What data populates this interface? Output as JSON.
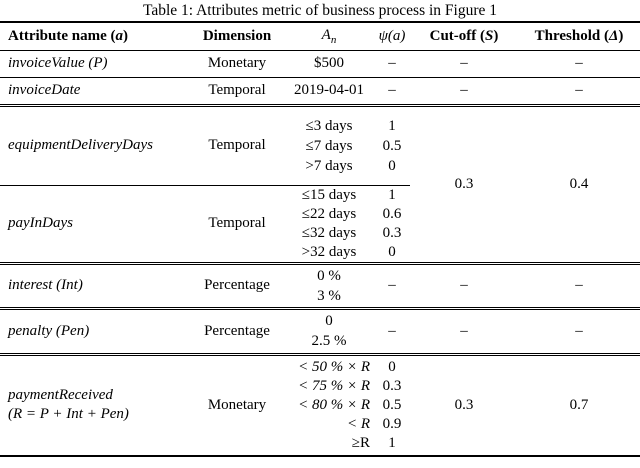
{
  "caption": "Table 1: Attributes metric of business process in Figure 1",
  "table": {
    "headers": {
      "attribute": {
        "pre": "Attribute name (",
        "var": "a",
        "post": ")"
      },
      "dimension": "Dimension",
      "an": {
        "var": "A",
        "sub": "n"
      },
      "psi": "ψ(a)",
      "cutoff": {
        "pre": "Cut-off (",
        "var": "S",
        "post": ")"
      },
      "threshold": {
        "pre": "Threshold (",
        "var": "Δ",
        "post": ")"
      }
    },
    "rows": [
      {
        "name": "invoiceValue (P)",
        "dimension": "Monetary",
        "an": [
          "$500"
        ],
        "psi": [
          "–"
        ],
        "cutoff": "–",
        "threshold": "–"
      },
      {
        "name": "invoiceDate",
        "dimension": "Temporal",
        "an": [
          "2019-04-01"
        ],
        "psi": [
          "–"
        ],
        "cutoff": "–",
        "threshold": "–"
      },
      {
        "name": "equipmentDeliveryDays",
        "dimension": "Temporal",
        "an": [
          "≤3 days",
          "≤7 days",
          ">7 days"
        ],
        "psi": [
          "1",
          "0.5",
          "0"
        ],
        "cutoff": "0.3",
        "threshold": "0.4"
      },
      {
        "name": "payInDays",
        "dimension": "Temporal",
        "an": [
          "≤15 days",
          "≤22 days",
          "≤32 days",
          ">32 days"
        ],
        "psi": [
          "1",
          "0.6",
          "0.3",
          "0"
        ]
      },
      {
        "name": "interest (Int)",
        "dimension": "Percentage",
        "an": [
          "0 %",
          "3 %"
        ],
        "psi": [
          "–"
        ],
        "cutoff": "–",
        "threshold": "–"
      },
      {
        "name": "penalty (Pen)",
        "dimension": "Percentage",
        "an": [
          "0",
          "2.5 %"
        ],
        "psi": [
          "–"
        ],
        "cutoff": "–",
        "threshold": "–"
      },
      {
        "name": "paymentReceived",
        "name_line2": "(R = P + Int + Pen)",
        "dimension": "Monetary",
        "an": [
          "< 50 % × R",
          "< 75 % × R",
          "< 80 % × R",
          "< R",
          "≥R"
        ],
        "psi": [
          "0",
          "0.3",
          "0.5",
          "0.9",
          "1"
        ],
        "cutoff": "0.3",
        "threshold": "0.7"
      }
    ]
  }
}
